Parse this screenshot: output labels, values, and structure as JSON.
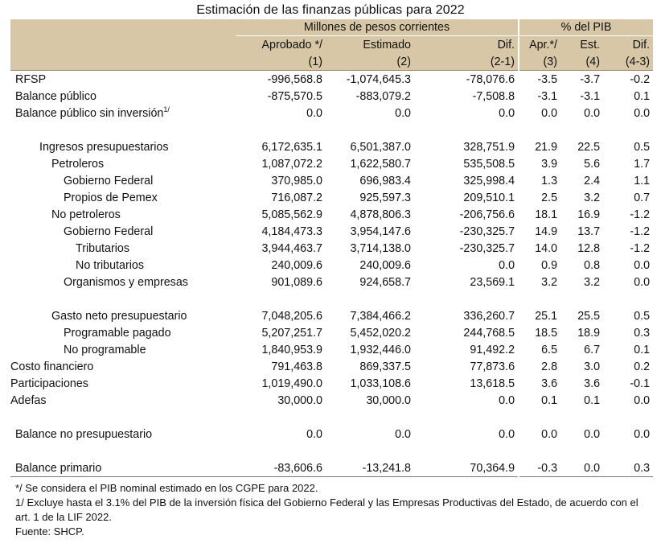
{
  "title": "Estimación de las finanzas públicas para 2022",
  "header": {
    "group_pesos": "Millones de pesos corrientes",
    "group_pib": "% del PIB",
    "cols": [
      "Aprobado */",
      "Estimado",
      "Dif.",
      "Apr.*/",
      "Est.",
      "Dif."
    ],
    "col_nums": [
      "(1)",
      "(2)",
      "(2-1)",
      "(3)",
      "(4)",
      "(4-3)"
    ]
  },
  "rows": [
    {
      "label": "RFSP",
      "sup": "",
      "indent": 0,
      "values": [
        "-996,568.8",
        "-1,074,645.3",
        "-78,076.6",
        "-3.5",
        "-3.7",
        "-0.2"
      ]
    },
    {
      "label": "Balance público",
      "sup": "",
      "indent": 0,
      "values": [
        "-875,570.5",
        "-883,079.2",
        "-7,508.8",
        "-3.1",
        "-3.1",
        "0.1"
      ]
    },
    {
      "label": "Balance público sin inversión",
      "sup": "1/",
      "indent": 0,
      "values": [
        "0.0",
        "0.0",
        "0.0",
        "0.0",
        "0.0",
        "0.0"
      ]
    },
    {
      "label": "Ingresos presupuestarios",
      "sup": "",
      "indent": 2,
      "values": [
        "6,172,635.1",
        "6,501,387.0",
        "328,751.9",
        "21.9",
        "22.5",
        "0.5"
      ]
    },
    {
      "label": "Petroleros",
      "sup": "",
      "indent": 3,
      "values": [
        "1,087,072.2",
        "1,622,580.7",
        "535,508.5",
        "3.9",
        "5.6",
        "1.7"
      ]
    },
    {
      "label": "Gobierno Federal",
      "sup": "",
      "indent": 4,
      "values": [
        "370,985.0",
        "696,983.4",
        "325,998.4",
        "1.3",
        "2.4",
        "1.1"
      ]
    },
    {
      "label": "Propios de Pemex",
      "sup": "",
      "indent": 4,
      "values": [
        "716,087.2",
        "925,597.3",
        "209,510.1",
        "2.5",
        "3.2",
        "0.7"
      ]
    },
    {
      "label": "No petroleros",
      "sup": "",
      "indent": 3,
      "values": [
        "5,085,562.9",
        "4,878,806.3",
        "-206,756.6",
        "18.1",
        "16.9",
        "-1.2"
      ]
    },
    {
      "label": "Gobierno Federal",
      "sup": "",
      "indent": 4,
      "values": [
        "4,184,473.3",
        "3,954,147.6",
        "-230,325.7",
        "14.9",
        "13.7",
        "-1.2"
      ]
    },
    {
      "label": "Tributarios",
      "sup": "",
      "indent": 5,
      "values": [
        "3,944,463.7",
        "3,714,138.0",
        "-230,325.7",
        "14.0",
        "12.8",
        "-1.2"
      ]
    },
    {
      "label": "No tributarios",
      "sup": "",
      "indent": 5,
      "values": [
        "240,009.6",
        "240,009.6",
        "0.0",
        "0.9",
        "0.8",
        "0.0"
      ]
    },
    {
      "label": "Organismos y empresas",
      "sup": "",
      "indent": 4,
      "values": [
        "901,089.6",
        "924,658.7",
        "23,569.1",
        "3.2",
        "3.2",
        "0.0"
      ]
    },
    {
      "label": "Gasto neto presupuestario",
      "sup": "",
      "indent": 3,
      "values": [
        "7,048,205.6",
        "7,384,466.2",
        "336,260.7",
        "25.1",
        "25.5",
        "0.5"
      ]
    },
    {
      "label": "Programable pagado",
      "sup": "",
      "indent": 4,
      "values": [
        "5,207,251.7",
        "5,452,020.2",
        "244,768.5",
        "18.5",
        "18.9",
        "0.3"
      ]
    },
    {
      "label": "No programable",
      "sup": "",
      "indent": 4,
      "values": [
        "1,840,953.9",
        "1,932,446.0",
        "91,492.2",
        "6.5",
        "6.7",
        "0.1"
      ]
    },
    {
      "label": "Costo financiero",
      "sup": "",
      "indent": 6,
      "values": [
        "791,463.8",
        "869,337.5",
        "77,873.6",
        "2.8",
        "3.0",
        "0.2"
      ]
    },
    {
      "label": "Participaciones",
      "sup": "",
      "indent": 6,
      "values": [
        "1,019,490.0",
        "1,033,108.6",
        "13,618.5",
        "3.6",
        "3.6",
        "-0.1"
      ]
    },
    {
      "label": "Adefas",
      "sup": "",
      "indent": 6,
      "values": [
        "30,000.0",
        "30,000.0",
        "0.0",
        "0.1",
        "0.1",
        "0.0"
      ]
    },
    {
      "label": "Balance no presupuestario",
      "sup": "",
      "indent": 0,
      "values": [
        "0.0",
        "0.0",
        "0.0",
        "0.0",
        "0.0",
        "0.0"
      ]
    },
    {
      "label": "Balance primario",
      "sup": "",
      "indent": 0,
      "values": [
        "-83,606.6",
        "-13,241.8",
        "70,364.9",
        "-0.3",
        "0.0",
        "0.3"
      ]
    }
  ],
  "footnotes": [
    "*/ Se considera el PIB nominal estimado en los CGPE para 2022.",
    "1/ Excluye hasta el 3.1% del PIB de la inversión física del Gobierno Federal y las Empresas Productivas del Estado, de acuerdo con el art. 1 de la LIF 2022.",
    "Fuente: SHCP."
  ]
}
